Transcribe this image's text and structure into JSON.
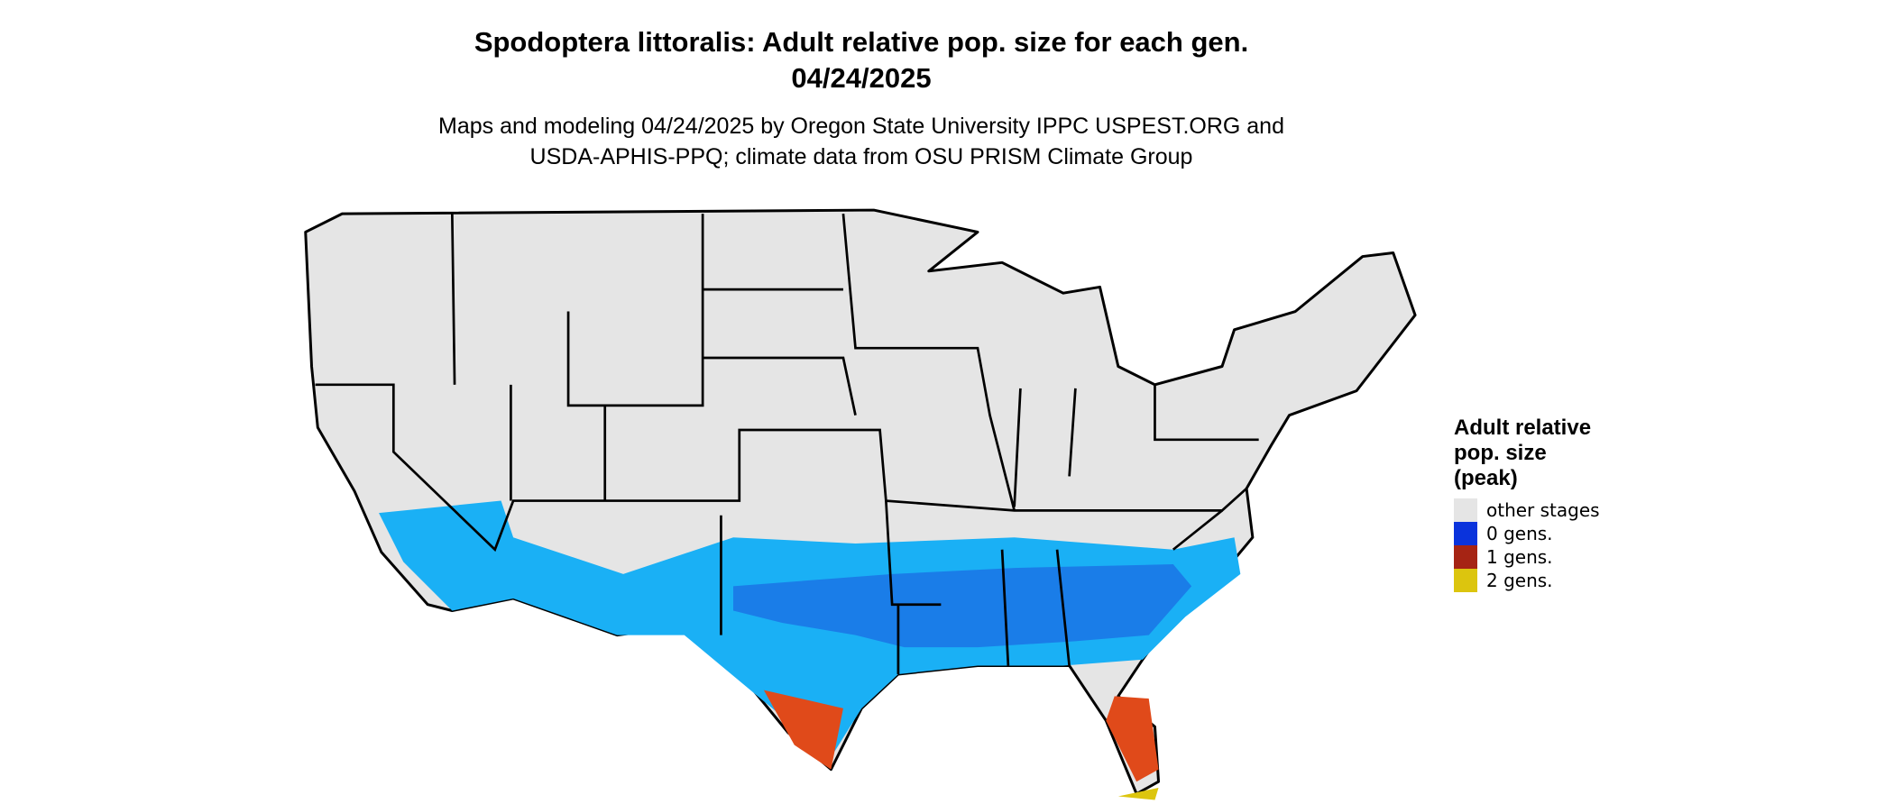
{
  "header": {
    "title": [
      "Spodoptera littoralis: Adult relative pop. size for each gen.",
      "04/24/2025"
    ],
    "subtitle": [
      "Maps and modeling 04/24/2025 by Oregon State University IPPC USPEST.ORG and",
      "USDA-APHIS-PPQ; climate data from OSU PRISM Climate Group"
    ]
  },
  "legend": {
    "title": [
      "Adult relative",
      "pop. size",
      "(peak)"
    ],
    "items": [
      {
        "label": "other stages",
        "color": "#e5e5e5"
      },
      {
        "label": "0 gens.",
        "color": "#0a33dc"
      },
      {
        "label": "1 gens.",
        "color": "#a62414"
      },
      {
        "label": "2 gens.",
        "color": "#dcc50e"
      }
    ]
  }
}
